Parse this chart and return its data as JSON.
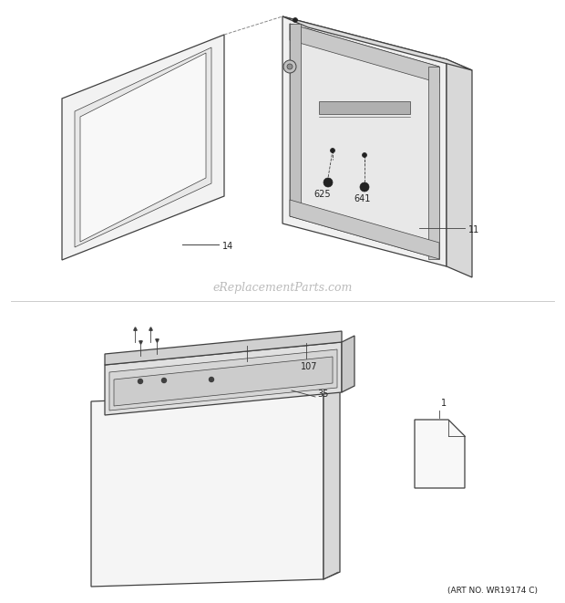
{
  "bg_color": "#ffffff",
  "watermark_text": "eReplacementParts.com",
  "watermark_color": "#bbbbbb",
  "art_no_text": "(ART NO. WR19174 C)",
  "line_color": "#404040",
  "dark": "#222222"
}
